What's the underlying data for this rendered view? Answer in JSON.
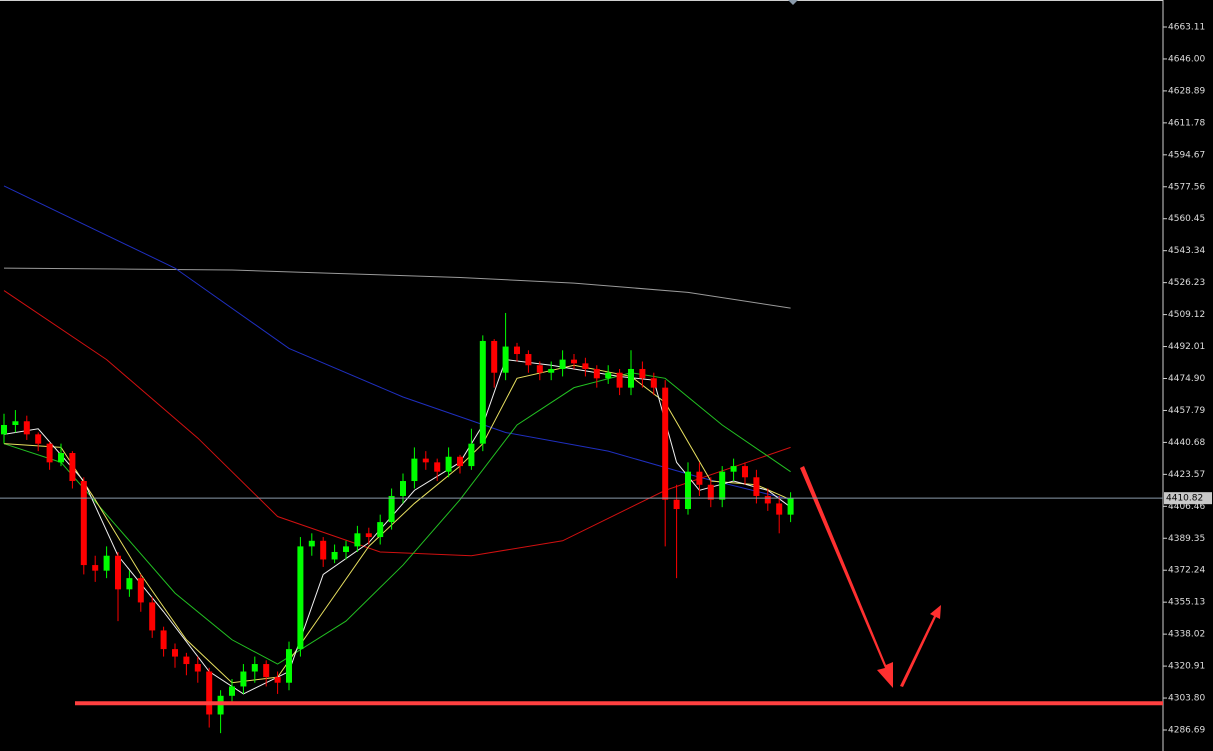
{
  "chart_data": {
    "type": "candlestick",
    "ylim": [
      4275.44,
      4677.57
    ],
    "yticks": [
      4663.11,
      {
        "value": 4646,
        "label": "4646.00"
      },
      4628.89,
      4611.78,
      4594.67,
      4577.56,
      4560.45,
      4543.34,
      4526.23,
      4509.12,
      4492.01,
      {
        "value": 4474.9,
        "label": "4474.90"
      },
      4457.79,
      4440.68,
      4423.57,
      4406.46,
      4389.35,
      4372.24,
      4355.13,
      4338.02,
      4320.91,
      {
        "value": 4303.8,
        "label": "4303.80"
      },
      4286.69
    ],
    "up_color": "#00ff00",
    "down_color": "#ff0000",
    "open": [
      4445,
      4450,
      4452,
      4445,
      4440,
      4430,
      4435,
      4420,
      4375,
      4372,
      4380,
      4362,
      4368,
      4355,
      4340,
      4330,
      4326,
      4322,
      4318,
      4295,
      4305,
      4310,
      4318,
      4322,
      4315,
      4312,
      4330,
      4385,
      4388,
      4378,
      4382,
      4385,
      4392,
      4390,
      4398,
      4412,
      4420,
      4432,
      4430,
      4425,
      4433,
      4428,
      4440,
      4495,
      4478,
      4492,
      4488,
      4482,
      4478,
      4480,
      4485,
      4483,
      4480,
      4475,
      4478,
      4470,
      4480,
      4475,
      4470,
      4410,
      4405,
      4425,
      4418,
      4410,
      4425,
      4428,
      4422,
      4412,
      4408,
      4402
    ],
    "high": [
      4456,
      4458,
      4455,
      4446,
      4441,
      4440,
      4436,
      4422,
      4380,
      4385,
      4382,
      4372,
      4370,
      4358,
      4342,
      4333,
      4328,
      4326,
      4320,
      4308,
      4314,
      4322,
      4326,
      4324,
      4318,
      4334,
      4390,
      4392,
      4390,
      4386,
      4388,
      4396,
      4395,
      4402,
      4416,
      4424,
      4438,
      4436,
      4432,
      4438,
      4434,
      4448,
      4498,
      4496,
      4510,
      4494,
      4490,
      4484,
      4484,
      4490,
      4488,
      4486,
      4482,
      4482,
      4480,
      4490,
      4484,
      4478,
      4474,
      4418,
      4430,
      4430,
      4422,
      4428,
      4432,
      4430,
      4426,
      4416,
      4412,
      4414
    ],
    "low": [
      4440,
      4446,
      4442,
      4436,
      4426,
      4428,
      4416,
      4370,
      4366,
      4368,
      4345,
      4358,
      4350,
      4336,
      4326,
      4320,
      4316,
      4312,
      4288,
      4285,
      4302,
      4306,
      4312,
      4310,
      4306,
      4308,
      4326,
      4380,
      4374,
      4376,
      4378,
      4382,
      4386,
      4386,
      4394,
      4408,
      4416,
      4426,
      4420,
      4422,
      4424,
      4426,
      4436,
      4470,
      4474,
      4484,
      4478,
      4474,
      4474,
      4476,
      4480,
      4476,
      4470,
      4472,
      4466,
      4466,
      4470,
      4466,
      4385,
      4368,
      4402,
      4412,
      4406,
      4406,
      4420,
      4418,
      4408,
      4404,
      4392,
      4398
    ],
    "close": [
      4450,
      4452,
      4445,
      4440,
      4430,
      4435,
      4420,
      4375,
      4372,
      4380,
      4362,
      4368,
      4355,
      4340,
      4330,
      4326,
      4322,
      4318,
      4295,
      4305,
      4310,
      4318,
      4322,
      4315,
      4312,
      4330,
      4385,
      4388,
      4378,
      4382,
      4385,
      4392,
      4390,
      4398,
      4412,
      4420,
      4432,
      4430,
      4425,
      4433,
      4428,
      4440,
      4495,
      4478,
      4492,
      4488,
      4482,
      4478,
      4480,
      4485,
      4483,
      4480,
      4475,
      4478,
      4470,
      4480,
      4475,
      4470,
      4410,
      4405,
      4425,
      4418,
      4410,
      4425,
      4428,
      4422,
      4412,
      4408,
      4402,
      4410.82
    ],
    "lines": [
      {
        "color": "#9a9a9a",
        "x": [
          0,
          10,
          20,
          30,
          40,
          50,
          60,
          69
        ],
        "values": [
          4534,
          4533.5,
          4533,
          4531,
          4529,
          4526,
          4521,
          4512.6
        ]
      },
      {
        "color": "#1f2fbf",
        "x": [
          0,
          15,
          25,
          35,
          44,
          53,
          61,
          69
        ],
        "values": [
          4578,
          4534,
          4491,
          4465,
          4446,
          4436,
          4422,
          4410
        ]
      },
      {
        "color": "#d01010",
        "x": [
          0,
          9,
          17,
          24,
          33,
          41,
          49,
          58,
          69
        ],
        "values": [
          4522,
          4485,
          4443,
          4401,
          4382,
          4380,
          4388,
          4415,
          4438
        ]
      },
      {
        "color": "#22c022",
        "x": [
          0,
          5,
          10,
          15,
          20,
          24,
          30,
          35,
          40,
          45,
          50,
          55,
          58,
          63,
          69
        ],
        "values": [
          4440,
          4430,
          4395,
          4360,
          4335,
          4322,
          4345,
          4375,
          4410,
          4450,
          4470,
          4478,
          4475,
          4450,
          4425
        ]
      },
      {
        "color": "#e8e060",
        "x": [
          0,
          5,
          8,
          12,
          16,
          20,
          24,
          28,
          32,
          36,
          40,
          42,
          45,
          50,
          55,
          58,
          62,
          66,
          69
        ],
        "values": [
          4440,
          4438,
          4410,
          4370,
          4335,
          4312,
          4315,
          4350,
          4385,
          4408,
          4428,
          4440,
          4475,
          4482,
          4476,
          4462,
          4420,
          4418,
          4410
        ]
      },
      {
        "color": "#f0f0f0",
        "x": [
          0,
          3,
          7,
          10,
          14,
          18,
          21,
          25,
          28,
          32,
          36,
          40,
          42,
          44,
          48,
          54,
          57,
          59,
          61,
          64,
          67,
          69
        ],
        "values": [
          4445,
          4448,
          4420,
          4380,
          4350,
          4318,
          4306,
          4318,
          4370,
          4387,
          4415,
          4430,
          4450,
          4485,
          4482,
          4476,
          4474,
          4430,
          4415,
          4420,
          4415,
          4406
        ]
      }
    ],
    "current_price": 4410.82,
    "support_level": 4301,
    "support_color": "#ff4040"
  }
}
